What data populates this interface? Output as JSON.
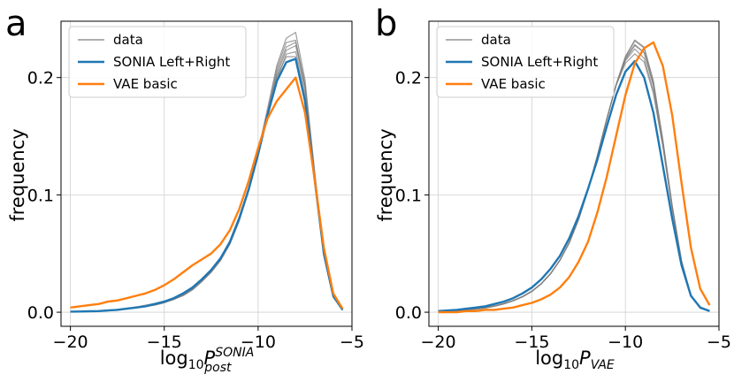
{
  "colors": {
    "data": "#7f7f7f",
    "sonia": "#1f77b4",
    "vae": "#ff7f0e",
    "grid": "#d0d0d0"
  },
  "chart_data": [
    {
      "panel": "a",
      "type": "line",
      "xlabel_base": "log",
      "xlabel_base_sub": "10",
      "xlabel_var": "P",
      "xlabel_sup": "SONIA",
      "xlabel_sub": "post",
      "ylabel": "frequency",
      "xlim": [
        -20.5,
        -5.0
      ],
      "ylim": [
        -0.012,
        0.248
      ],
      "xticks": [
        -20,
        -15,
        -10,
        -5
      ],
      "yticks": [
        0.0,
        0.1,
        0.2
      ],
      "xtick_labels": [
        "−20",
        "−15",
        "−10",
        "−5"
      ],
      "ytick_labels": [
        "0.0",
        "0.1",
        "0.2"
      ],
      "grid": true,
      "legend": [
        "data",
        "SONIA Left+Right",
        "VAE basic"
      ],
      "legend_position": "top-left",
      "x": [
        -20.0,
        -19.5,
        -19.0,
        -18.5,
        -18.0,
        -17.5,
        -17.0,
        -16.5,
        -16.0,
        -15.5,
        -15.0,
        -14.5,
        -14.0,
        -13.5,
        -13.0,
        -12.5,
        -12.0,
        -11.5,
        -11.0,
        -10.5,
        -10.0,
        -9.5,
        -9.0,
        -8.5,
        -8.0,
        -7.5,
        -7.0,
        -6.5,
        -6.0,
        -5.5
      ],
      "series": [
        {
          "name": "SONIA Left+Right",
          "values": [
            0.0005,
            0.0006,
            0.0008,
            0.001,
            0.0015,
            0.002,
            0.003,
            0.004,
            0.005,
            0.007,
            0.009,
            0.012,
            0.016,
            0.021,
            0.028,
            0.036,
            0.046,
            0.06,
            0.08,
            0.105,
            0.135,
            0.168,
            0.197,
            0.213,
            0.216,
            0.18,
            0.115,
            0.05,
            0.014,
            0.002
          ]
        },
        {
          "name": "VAE basic",
          "values": [
            0.004,
            0.005,
            0.006,
            0.007,
            0.009,
            0.01,
            0.012,
            0.014,
            0.016,
            0.019,
            0.023,
            0.028,
            0.034,
            0.04,
            0.045,
            0.05,
            0.058,
            0.07,
            0.088,
            0.112,
            0.14,
            0.165,
            0.18,
            0.19,
            0.2,
            0.17,
            0.115,
            0.055,
            0.016,
            0.003
          ]
        },
        {
          "name": "data",
          "values": [
            0.0004,
            0.0005,
            0.0007,
            0.001,
            0.0014,
            0.002,
            0.003,
            0.004,
            0.005,
            0.006,
            0.008,
            0.011,
            0.014,
            0.019,
            0.026,
            0.034,
            0.044,
            0.058,
            0.078,
            0.104,
            0.134,
            0.17,
            0.205,
            0.226,
            0.23,
            0.193,
            0.12,
            0.05,
            0.013,
            0.002
          ]
        },
        {
          "name": "data",
          "values": [
            0.0006,
            0.0007,
            0.0009,
            0.0012,
            0.0018,
            0.0024,
            0.0034,
            0.0045,
            0.006,
            0.0075,
            0.0095,
            0.012,
            0.016,
            0.021,
            0.028,
            0.036,
            0.046,
            0.061,
            0.082,
            0.106,
            0.134,
            0.166,
            0.198,
            0.22,
            0.222,
            0.19,
            0.118,
            0.049,
            0.013,
            0.002
          ]
        },
        {
          "name": "data",
          "values": [
            0.0003,
            0.0004,
            0.0006,
            0.0009,
            0.0013,
            0.0018,
            0.0026,
            0.0036,
            0.0048,
            0.0062,
            0.0082,
            0.0108,
            0.0145,
            0.0195,
            0.0265,
            0.0345,
            0.0455,
            0.0595,
            0.0795,
            0.1055,
            0.1375,
            0.1735,
            0.2105,
            0.2335,
            0.2385,
            0.198,
            0.122,
            0.051,
            0.0135,
            0.002
          ]
        },
        {
          "name": "data",
          "values": [
            0.0005,
            0.0006,
            0.0008,
            0.0011,
            0.0016,
            0.0022,
            0.0031,
            0.0042,
            0.0055,
            0.007,
            0.0088,
            0.0115,
            0.0152,
            0.0202,
            0.0272,
            0.0352,
            0.0452,
            0.0592,
            0.0792,
            0.1042,
            0.1342,
            0.1682,
            0.2022,
            0.2232,
            0.2272,
            0.1932,
            0.1202,
            0.0502,
            0.0132,
            0.002
          ]
        },
        {
          "name": "data",
          "values": [
            0.0004,
            0.0005,
            0.0007,
            0.001,
            0.0015,
            0.0021,
            0.0029,
            0.0039,
            0.0052,
            0.0067,
            0.0086,
            0.0112,
            0.0148,
            0.0198,
            0.0268,
            0.0348,
            0.0448,
            0.0588,
            0.0788,
            0.1038,
            0.1348,
            0.1708,
            0.2078,
            0.2298,
            0.2318,
            0.1938,
            0.1198,
            0.0498,
            0.0128,
            0.002
          ]
        },
        {
          "name": "data",
          "values": [
            0.0005,
            0.0006,
            0.0008,
            0.0011,
            0.0015,
            0.002,
            0.0029,
            0.0038,
            0.005,
            0.0063,
            0.0083,
            0.0108,
            0.0143,
            0.0193,
            0.0263,
            0.0343,
            0.0443,
            0.0583,
            0.0783,
            0.1033,
            0.1328,
            0.1668,
            0.2008,
            0.2178,
            0.2178,
            0.1858,
            0.1158,
            0.0478,
            0.0128,
            0.002
          ]
        }
      ]
    },
    {
      "panel": "b",
      "type": "line",
      "xlabel_base": "log",
      "xlabel_base_sub": "10",
      "xlabel_var": "P",
      "xlabel_sup": "",
      "xlabel_sub": "VAE",
      "ylabel": "frequency",
      "xlim": [
        -20.5,
        -5.0
      ],
      "ylim": [
        -0.012,
        0.248
      ],
      "xticks": [
        -20,
        -15,
        -10,
        -5
      ],
      "yticks": [
        0.0,
        0.1,
        0.2
      ],
      "xtick_labels": [
        "−20",
        "−15",
        "−10",
        "−5"
      ],
      "ytick_labels": [
        "0.0",
        "0.1",
        "0.2"
      ],
      "grid": true,
      "legend": [
        "data",
        "SONIA Left+Right",
        "VAE basic"
      ],
      "legend_position": "top-left",
      "x": [
        -20.0,
        -19.5,
        -19.0,
        -18.5,
        -18.0,
        -17.5,
        -17.0,
        -16.5,
        -16.0,
        -15.5,
        -15.0,
        -14.5,
        -14.0,
        -13.5,
        -13.0,
        -12.5,
        -12.0,
        -11.5,
        -11.0,
        -10.5,
        -10.0,
        -9.5,
        -9.0,
        -8.5,
        -8.0,
        -7.5,
        -7.0,
        -6.5,
        -6.0,
        -5.5
      ],
      "series": [
        {
          "name": "SONIA Left+Right",
          "values": [
            0.001,
            0.0015,
            0.002,
            0.003,
            0.004,
            0.005,
            0.007,
            0.009,
            0.012,
            0.016,
            0.021,
            0.028,
            0.037,
            0.048,
            0.063,
            0.082,
            0.105,
            0.13,
            0.158,
            0.185,
            0.205,
            0.214,
            0.2,
            0.17,
            0.125,
            0.08,
            0.04,
            0.014,
            0.004,
            0.001
          ]
        },
        {
          "name": "VAE basic",
          "values": [
            0.0,
            0.0,
            0.0,
            0.001,
            0.001,
            0.002,
            0.002,
            0.003,
            0.004,
            0.006,
            0.008,
            0.011,
            0.015,
            0.021,
            0.03,
            0.043,
            0.06,
            0.085,
            0.115,
            0.15,
            0.185,
            0.212,
            0.225,
            0.23,
            0.21,
            0.168,
            0.11,
            0.055,
            0.02,
            0.006
          ]
        },
        {
          "name": "data",
          "values": [
            0.0006,
            0.0009,
            0.0013,
            0.0019,
            0.0027,
            0.0037,
            0.0052,
            0.0072,
            0.0098,
            0.0132,
            0.0178,
            0.0242,
            0.0328,
            0.0442,
            0.0592,
            0.0792,
            0.1042,
            0.1332,
            0.1642,
            0.1932,
            0.2162,
            0.2282,
            0.2212,
            0.1932,
            0.1452,
            0.0902,
            0.0432,
            0.0142,
            0.0035,
            0.0008
          ]
        },
        {
          "name": "data",
          "values": [
            0.0008,
            0.0011,
            0.0015,
            0.0021,
            0.0029,
            0.0039,
            0.0054,
            0.0074,
            0.01,
            0.0134,
            0.018,
            0.0244,
            0.033,
            0.0444,
            0.0594,
            0.0794,
            0.1044,
            0.1334,
            0.1644,
            0.1934,
            0.2144,
            0.2244,
            0.2164,
            0.1884,
            0.1424,
            0.0884,
            0.0424,
            0.0142,
            0.0035,
            0.0008
          ]
        },
        {
          "name": "data",
          "values": [
            0.0005,
            0.0008,
            0.0012,
            0.0017,
            0.0025,
            0.0035,
            0.005,
            0.007,
            0.0096,
            0.013,
            0.0176,
            0.024,
            0.0326,
            0.044,
            0.059,
            0.079,
            0.104,
            0.133,
            0.164,
            0.194,
            0.218,
            0.232,
            0.226,
            0.197,
            0.147,
            0.091,
            0.044,
            0.0145,
            0.0036,
            0.0008
          ]
        },
        {
          "name": "data",
          "values": [
            0.0007,
            0.001,
            0.0014,
            0.002,
            0.0028,
            0.0038,
            0.0053,
            0.0073,
            0.0099,
            0.0133,
            0.0179,
            0.0243,
            0.0329,
            0.0443,
            0.0593,
            0.0793,
            0.1043,
            0.1333,
            0.1643,
            0.1933,
            0.2153,
            0.2273,
            0.2213,
            0.1933,
            0.1453,
            0.0903,
            0.0433,
            0.0143,
            0.0035,
            0.0008
          ]
        },
        {
          "name": "data",
          "values": [
            0.0006,
            0.0009,
            0.0013,
            0.0019,
            0.0027,
            0.0037,
            0.0052,
            0.0072,
            0.0098,
            0.0132,
            0.0178,
            0.0242,
            0.0328,
            0.0442,
            0.0592,
            0.0792,
            0.1042,
            0.1332,
            0.1642,
            0.1932,
            0.2122,
            0.2202,
            0.2132,
            0.1862,
            0.1412,
            0.0882,
            0.0422,
            0.014,
            0.0034,
            0.0008
          ]
        },
        {
          "name": "data",
          "values": [
            0.0006,
            0.0009,
            0.0013,
            0.0019,
            0.0027,
            0.0037,
            0.0052,
            0.0072,
            0.0098,
            0.0132,
            0.0178,
            0.0242,
            0.0328,
            0.0442,
            0.0592,
            0.0792,
            0.1042,
            0.1332,
            0.1642,
            0.1932,
            0.2172,
            0.2312,
            0.2252,
            0.1952,
            0.1462,
            0.0902,
            0.0432,
            0.0142,
            0.0035,
            0.0008
          ]
        }
      ]
    }
  ]
}
